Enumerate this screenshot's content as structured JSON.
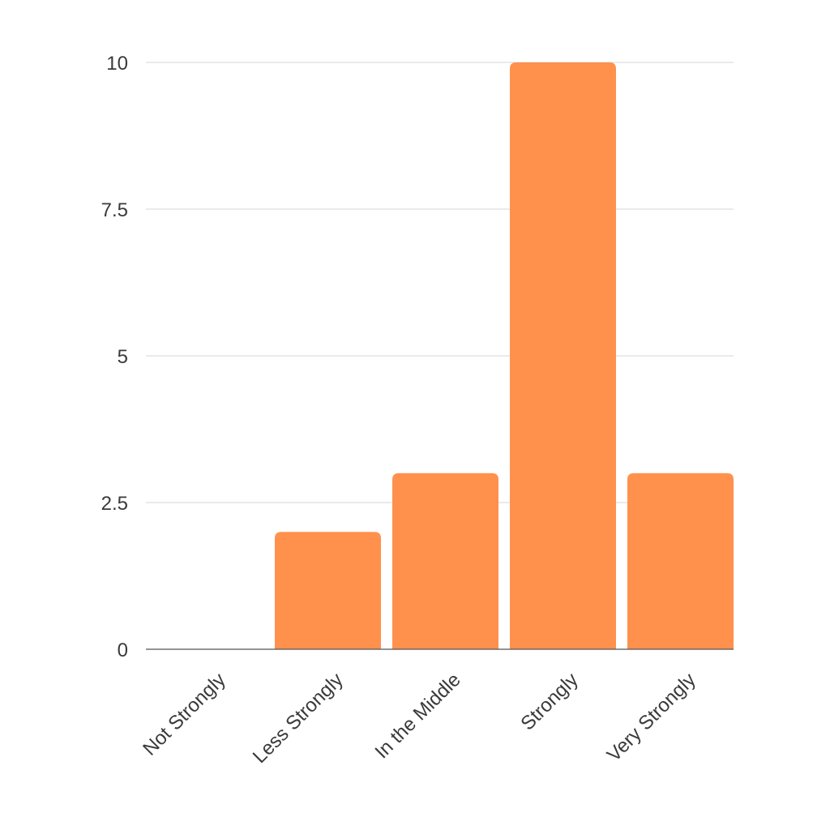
{
  "chart_data": {
    "type": "bar",
    "title": "",
    "xlabel": "",
    "ylabel": "",
    "categories": [
      "Not Strongly",
      "Less Strongly",
      "In the Middle",
      "Strongly",
      "Very Strongly"
    ],
    "values": [
      0,
      2,
      3,
      10,
      3
    ],
    "ylim": [
      0,
      10
    ],
    "yticks": [
      "0",
      "2.5",
      "5",
      "7.5",
      "10"
    ],
    "grid": true,
    "legend": "none",
    "bar_color": "#FF914D",
    "grid_color": "#D6D6D6",
    "axis_color": "#555555",
    "text_color": "#3A3A3A"
  }
}
